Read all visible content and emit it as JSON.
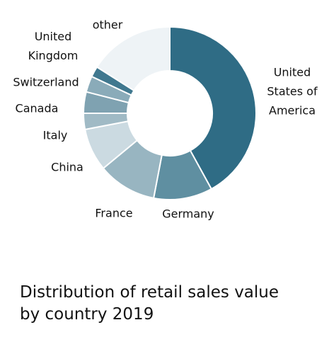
{
  "chart_data": {
    "type": "donut",
    "title": "Distribution of retail sales value by country 2019",
    "categories": [
      "United States of America",
      "Germany",
      "France",
      "China",
      "Italy",
      "Canada",
      "Switzerland",
      "United Kingdom",
      "other"
    ],
    "values": [
      42,
      11,
      11,
      8,
      3,
      4,
      3,
      2,
      16
    ],
    "colors": [
      "#2f6c85",
      "#5f8fa1",
      "#98b5c1",
      "#cbdae1",
      "#a0bac5",
      "#7fa2b1",
      "#8aabb9",
      "#40788f",
      "#eef3f6"
    ]
  }
}
